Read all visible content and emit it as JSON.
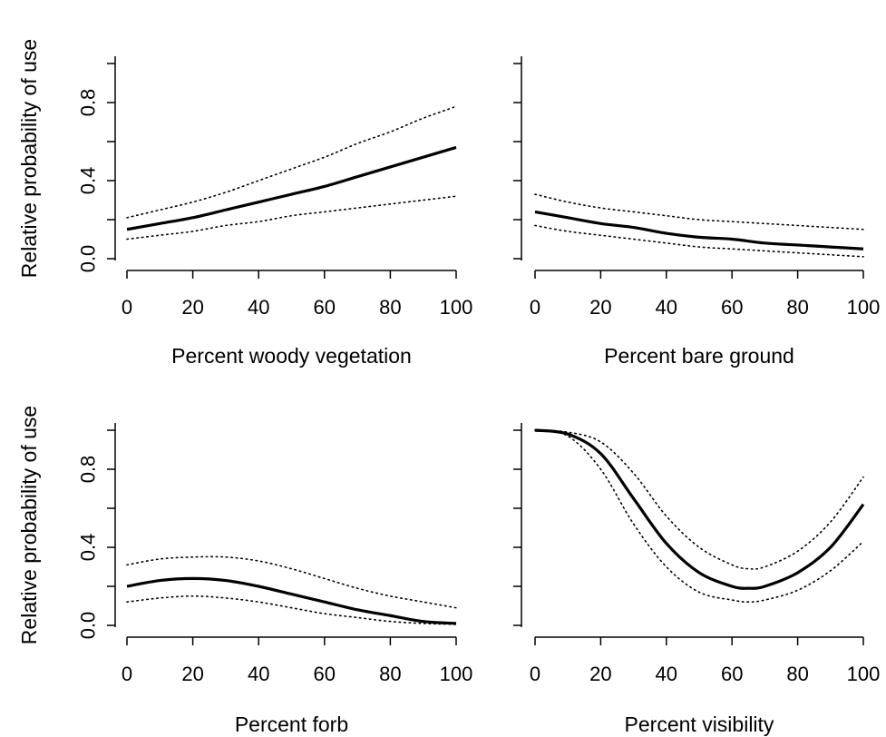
{
  "chart_data": [
    {
      "type": "line",
      "xlabel": "Percent woody vegetation",
      "ylabel": "Relative probability of use",
      "xlim": [
        0,
        100
      ],
      "ylim": [
        0,
        1
      ],
      "x_ticks": [
        "0",
        "20",
        "40",
        "60",
        "80",
        "100"
      ],
      "y_ticks": [
        "0.0",
        "0.4",
        "0.8"
      ],
      "x": [
        0,
        10,
        20,
        30,
        40,
        50,
        60,
        70,
        80,
        90,
        100
      ],
      "series": [
        {
          "style": "solid",
          "values": [
            0.15,
            0.18,
            0.21,
            0.25,
            0.29,
            0.33,
            0.37,
            0.42,
            0.47,
            0.52,
            0.57
          ]
        },
        {
          "style": "dotted",
          "values": [
            0.21,
            0.25,
            0.29,
            0.34,
            0.4,
            0.46,
            0.52,
            0.59,
            0.65,
            0.72,
            0.78
          ]
        },
        {
          "style": "dotted",
          "values": [
            0.1,
            0.12,
            0.14,
            0.17,
            0.19,
            0.22,
            0.24,
            0.26,
            0.28,
            0.3,
            0.32
          ]
        }
      ]
    },
    {
      "type": "line",
      "xlabel": "Percent bare ground",
      "ylabel": "",
      "xlim": [
        0,
        100
      ],
      "ylim": [
        0,
        1
      ],
      "x_ticks": [
        "0",
        "20",
        "40",
        "60",
        "80",
        "100"
      ],
      "y_ticks": [],
      "x": [
        0,
        10,
        20,
        30,
        40,
        50,
        60,
        70,
        80,
        90,
        100
      ],
      "series": [
        {
          "style": "solid",
          "values": [
            0.24,
            0.21,
            0.18,
            0.16,
            0.13,
            0.11,
            0.1,
            0.08,
            0.07,
            0.06,
            0.05
          ]
        },
        {
          "style": "dotted",
          "values": [
            0.33,
            0.29,
            0.26,
            0.24,
            0.22,
            0.2,
            0.19,
            0.18,
            0.17,
            0.16,
            0.15
          ]
        },
        {
          "style": "dotted",
          "values": [
            0.17,
            0.14,
            0.12,
            0.1,
            0.08,
            0.06,
            0.05,
            0.04,
            0.03,
            0.02,
            0.01
          ]
        }
      ]
    },
    {
      "type": "line",
      "xlabel": "Percent forb",
      "ylabel": "Relative probability of use",
      "xlim": [
        0,
        100
      ],
      "ylim": [
        0,
        1
      ],
      "x_ticks": [
        "0",
        "20",
        "40",
        "60",
        "80",
        "100"
      ],
      "y_ticks": [
        "0.0",
        "0.4",
        "0.8"
      ],
      "x": [
        0,
        10,
        20,
        30,
        40,
        50,
        60,
        70,
        80,
        90,
        100
      ],
      "series": [
        {
          "style": "solid",
          "values": [
            0.2,
            0.23,
            0.24,
            0.23,
            0.2,
            0.16,
            0.12,
            0.08,
            0.05,
            0.02,
            0.01
          ]
        },
        {
          "style": "dotted",
          "values": [
            0.31,
            0.34,
            0.35,
            0.35,
            0.33,
            0.29,
            0.24,
            0.19,
            0.15,
            0.12,
            0.09
          ]
        },
        {
          "style": "dotted",
          "values": [
            0.12,
            0.14,
            0.15,
            0.14,
            0.12,
            0.09,
            0.06,
            0.04,
            0.02,
            0.01,
            0.005
          ]
        }
      ]
    },
    {
      "type": "line",
      "xlabel": "Percent visibility",
      "ylabel": "",
      "xlim": [
        0,
        100
      ],
      "ylim": [
        0,
        1
      ],
      "x_ticks": [
        "0",
        "20",
        "40",
        "60",
        "80",
        "100"
      ],
      "y_ticks": [],
      "x": [
        0,
        10,
        20,
        30,
        40,
        50,
        60,
        65,
        70,
        80,
        90,
        100
      ],
      "series": [
        {
          "style": "solid",
          "values": [
            1.0,
            0.98,
            0.88,
            0.65,
            0.42,
            0.27,
            0.2,
            0.19,
            0.2,
            0.27,
            0.4,
            0.62
          ]
        },
        {
          "style": "dotted",
          "values": [
            1.0,
            0.99,
            0.94,
            0.78,
            0.56,
            0.4,
            0.31,
            0.29,
            0.3,
            0.38,
            0.53,
            0.76
          ]
        },
        {
          "style": "dotted",
          "values": [
            1.0,
            0.97,
            0.8,
            0.52,
            0.3,
            0.17,
            0.13,
            0.12,
            0.13,
            0.18,
            0.28,
            0.43
          ]
        }
      ]
    }
  ]
}
